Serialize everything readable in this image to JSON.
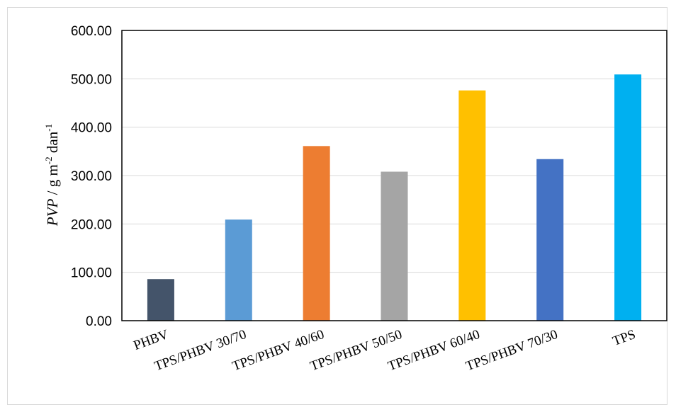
{
  "chart_data": {
    "type": "bar",
    "categories": [
      "PHBV",
      "TPS/PHBV 30/70",
      "TPS/PHBV 40/60",
      "TPS/PHBV 50/50",
      "TPS/PHBV 60/40",
      "TPS/PHBV 70/30",
      "TPS"
    ],
    "values": [
      86,
      209,
      361,
      308,
      476,
      334,
      509
    ],
    "colors": [
      "#44546a",
      "#5b9bd5",
      "#ed7d31",
      "#a5a5a5",
      "#ffc000",
      "#4472c4",
      "#00b0f0"
    ],
    "ylim": [
      0,
      600
    ],
    "yticks": [
      0,
      100,
      200,
      300,
      400,
      500,
      600
    ],
    "ytick_labels": [
      "0.00",
      "100.00",
      "200.00",
      "300.00",
      "400.00",
      "500.00",
      "600.00"
    ],
    "ylabel": {
      "symbol": "PVP",
      "unit_prefix": " / g m",
      "exp1": "-2",
      "unit_mid": " dan",
      "exp2": "-1"
    },
    "xlabel": "",
    "title": "",
    "grid": "horizontal",
    "legend": "none"
  }
}
